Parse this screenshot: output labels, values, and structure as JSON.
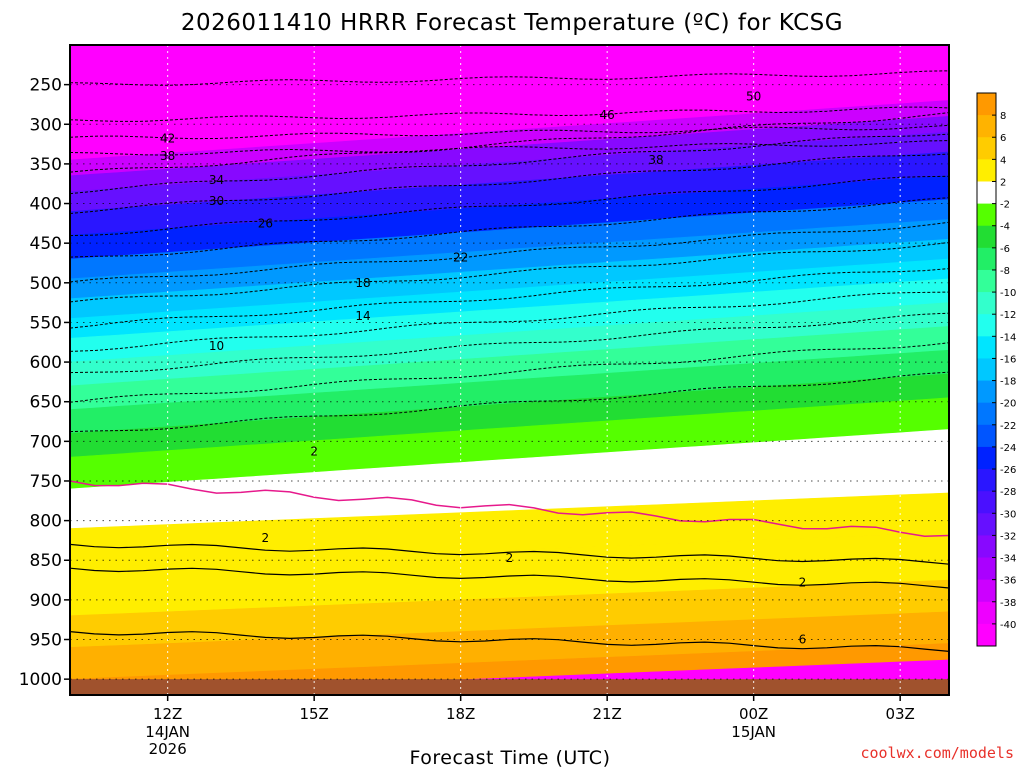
{
  "chart_data": {
    "type": "heatmap",
    "title": "2026011410 HRRR Forecast Temperature (ºC) for KCSG",
    "xlabel": "Forecast Time (UTC)",
    "ylabel": "",
    "credit": "coolwx.com/models",
    "x_ticks": [
      {
        "hour": 2,
        "label": "12Z",
        "sub": [
          "14JAN",
          "2026"
        ]
      },
      {
        "hour": 5,
        "label": "15Z",
        "sub": []
      },
      {
        "hour": 8,
        "label": "18Z",
        "sub": []
      },
      {
        "hour": 11,
        "label": "21Z",
        "sub": []
      },
      {
        "hour": 14,
        "label": "00Z",
        "sub": [
          "15JAN"
        ]
      },
      {
        "hour": 17,
        "label": "03Z",
        "sub": []
      }
    ],
    "xlim_hours": [
      0,
      18
    ],
    "y_ticks": [
      250,
      300,
      350,
      400,
      450,
      500,
      550,
      600,
      650,
      700,
      750,
      800,
      850,
      900,
      950,
      1000
    ],
    "ylim_hPa": [
      200,
      1020
    ],
    "grid": "dotted",
    "colorbar": {
      "labels": [
        "8",
        "6",
        "4",
        "2",
        "-2",
        "-4",
        "-6",
        "-8",
        "-10",
        "-12",
        "-14",
        "-16",
        "-18",
        "-20",
        "-22",
        "-24",
        "-26",
        "-28",
        "-30",
        "-32",
        "-34",
        "-36",
        "-38",
        "-40"
      ],
      "colors": [
        "#ff9900",
        "#ffb300",
        "#ffcc00",
        "#ffee00",
        "#ffffff",
        "#55ff00",
        "#22dd33",
        "#22ee66",
        "#33ff99",
        "#33ffcc",
        "#22ffee",
        "#00e5ff",
        "#00c8ff",
        "#0099ff",
        "#0077ff",
        "#0055ff",
        "#0022ff",
        "#2a16ff",
        "#4a10ff",
        "#6610ff",
        "#8808ff",
        "#aa00ff",
        "#cc00ff",
        "#ee00ff",
        "#ff00ff"
      ]
    },
    "bands": [
      {
        "hpa": 200,
        "t": -52
      },
      {
        "hpa": 330,
        "t": -41
      },
      {
        "hpa": 345,
        "t": -37
      },
      {
        "hpa": 365,
        "t": -34
      },
      {
        "hpa": 385,
        "t": -31
      },
      {
        "hpa": 410,
        "t": -28
      },
      {
        "hpa": 440,
        "t": -25
      },
      {
        "hpa": 470,
        "t": -22
      },
      {
        "hpa": 495,
        "t": -19
      },
      {
        "hpa": 520,
        "t": -17
      },
      {
        "hpa": 545,
        "t": -15
      },
      {
        "hpa": 570,
        "t": -13
      },
      {
        "hpa": 600,
        "t": -11
      },
      {
        "hpa": 630,
        "t": -9
      },
      {
        "hpa": 660,
        "t": -7
      },
      {
        "hpa": 690,
        "t": -5
      },
      {
        "hpa": 720,
        "t": -3
      },
      {
        "hpa": 760,
        "t": 0
      },
      {
        "hpa": 810,
        "t": 2
      },
      {
        "hpa": 860,
        "t": 3
      },
      {
        "hpa": 920,
        "t": 5
      },
      {
        "hpa": 960,
        "t": 7
      },
      {
        "hpa": 1000,
        "t": 9
      }
    ],
    "contour_labels": [
      {
        "text": "50",
        "hour": 14.0,
        "hpa": 265
      },
      {
        "text": "46",
        "hour": 11.0,
        "hpa": 288
      },
      {
        "text": "42",
        "hour": 2.0,
        "hpa": 318
      },
      {
        "text": "38",
        "hour": 2.0,
        "hpa": 340
      },
      {
        "text": "38",
        "hour": 12.0,
        "hpa": 345
      },
      {
        "text": "34",
        "hour": 3.0,
        "hpa": 370
      },
      {
        "text": "30",
        "hour": 3.0,
        "hpa": 397
      },
      {
        "text": "26",
        "hour": 4.0,
        "hpa": 425
      },
      {
        "text": "22",
        "hour": 8.0,
        "hpa": 468
      },
      {
        "text": "18",
        "hour": 6.0,
        "hpa": 500
      },
      {
        "text": "14",
        "hour": 6.0,
        "hpa": 542
      },
      {
        "text": "10",
        "hour": 3.0,
        "hpa": 580
      },
      {
        "text": "2",
        "hour": 5.0,
        "hpa": 713
      },
      {
        "text": "2",
        "hour": 4.0,
        "hpa": 822
      },
      {
        "text": "2",
        "hour": 9.0,
        "hpa": 847
      },
      {
        "text": "2",
        "hour": 15.0,
        "hpa": 878
      },
      {
        "text": "6",
        "hour": 15.0,
        "hpa": 950
      }
    ]
  }
}
